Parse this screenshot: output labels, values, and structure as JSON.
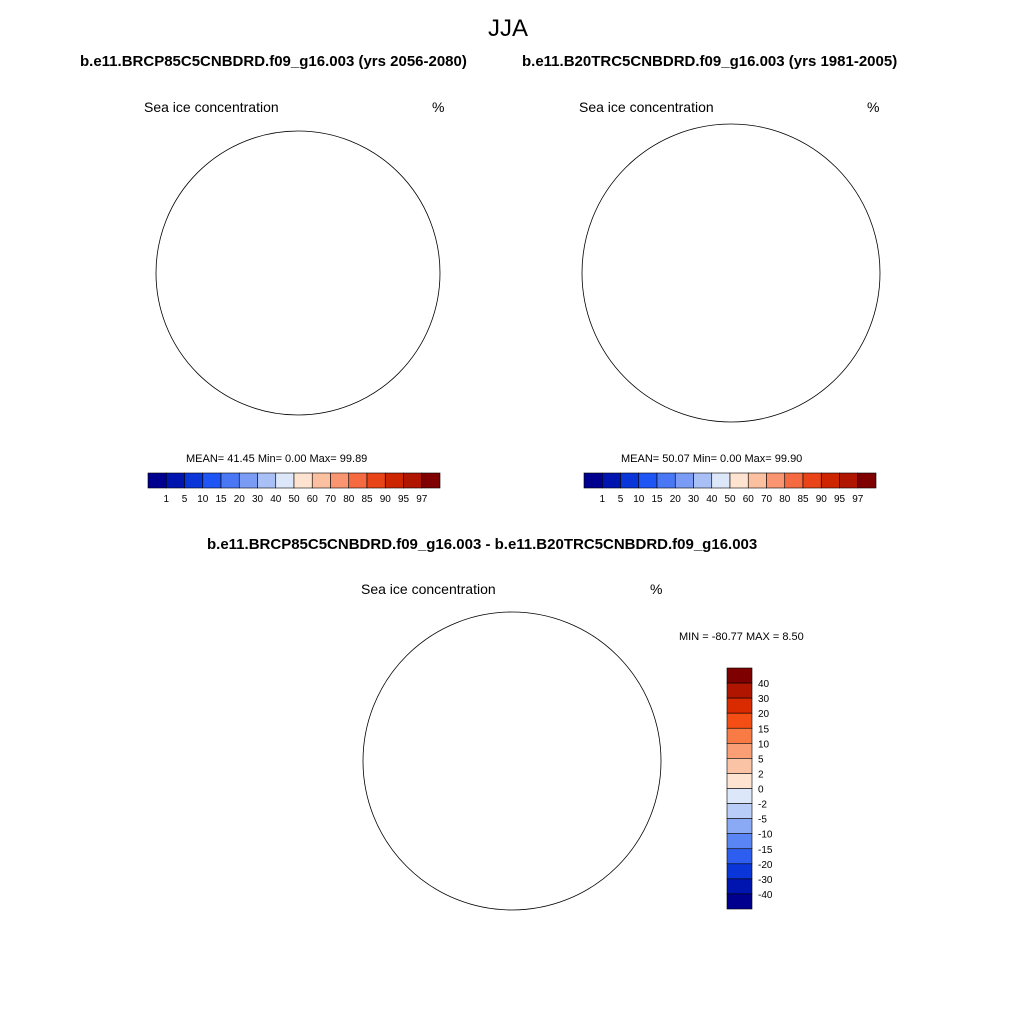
{
  "season": "JJA",
  "panels": [
    {
      "title": "b.e11.BRCP85C5CNBDRD.f09_g16.003 (yrs 2056-2080)",
      "left_label": "Sea ice concentration",
      "right_label": "%",
      "stats": "MEAN=  41.45  Min=   0.00  Max=  99.89"
    },
    {
      "title": "b.e11.B20TRC5CNBDRD.f09_g16.003 (yrs 1981-2005)",
      "left_label": "Sea ice concentration",
      "right_label": "%",
      "stats": "MEAN=  50.07  Min=   0.00  Max=  99.90"
    }
  ],
  "diff_panel": {
    "title": "b.e11.BRCP85C5CNBDRD.f09_g16.003 - b.e11.B20TRC5CNBDRD.f09_g16.003",
    "left_label": "Sea ice concentration",
    "right_label": "%",
    "minmax": "MIN = -80.77 MAX =   8.50"
  },
  "colorbar_main": {
    "ticks": [
      "1",
      "5",
      "10",
      "15",
      "20",
      "30",
      "40",
      "50",
      "60",
      "70",
      "80",
      "85",
      "90",
      "95",
      "97"
    ],
    "colors": [
      "#00008f",
      "#0015b0",
      "#0a35d8",
      "#1f55f5",
      "#4a78f5",
      "#7a9cf5",
      "#a8c0f5",
      "#dce8fa",
      "#fde3d0",
      "#fbc0a0",
      "#f99570",
      "#f56a40",
      "#e94418",
      "#cc2500",
      "#b01500",
      "#7f0000"
    ]
  },
  "colorbar_diff": {
    "ticks": [
      "40",
      "30",
      "20",
      "15",
      "10",
      "5",
      "2",
      "0",
      "-2",
      "-5",
      "-10",
      "-15",
      "-20",
      "-30",
      "-40"
    ],
    "colors": [
      "#7f0000",
      "#b01500",
      "#d92a00",
      "#f54e15",
      "#f87a45",
      "#fa9e75",
      "#fbc3a5",
      "#fde3d0",
      "#dce8fa",
      "#b8cef8",
      "#8aaaf5",
      "#5a85f5",
      "#2d5ef0",
      "#0a35d8",
      "#0015b0",
      "#00008f"
    ]
  }
}
